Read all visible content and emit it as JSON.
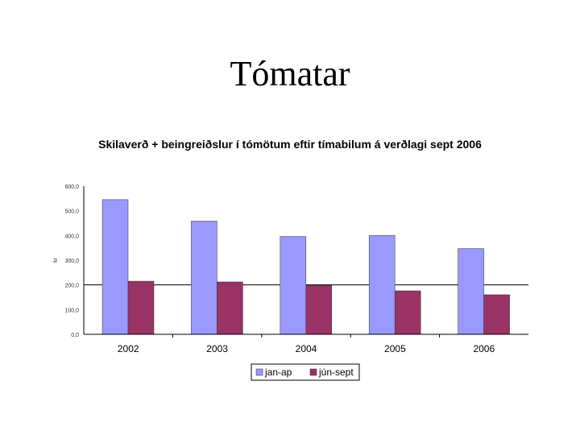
{
  "slide": {
    "title": "Tómatar"
  },
  "chart_data": {
    "type": "bar",
    "title": "Skilaverð + beingreiðslur í tómötum eftir tímabilum á verðlagi sept 2006",
    "xlabel": "",
    "ylabel": "kr",
    "categories": [
      "2002",
      "2003",
      "2004",
      "2005",
      "2006"
    ],
    "series": [
      {
        "name": "jan-ap",
        "values": [
          545,
          458,
          396,
          400,
          347
        ],
        "color": "#9999ff"
      },
      {
        "name": "jún-sept",
        "values": [
          215,
          212,
          198,
          176,
          160
        ],
        "color": "#993366"
      }
    ],
    "ylim": [
      0,
      600
    ],
    "yticks": [
      "0,0",
      "100,0",
      "200,0",
      "300,0",
      "400,0",
      "500,0",
      "600,0"
    ],
    "grid": true,
    "legend": "bottom"
  }
}
